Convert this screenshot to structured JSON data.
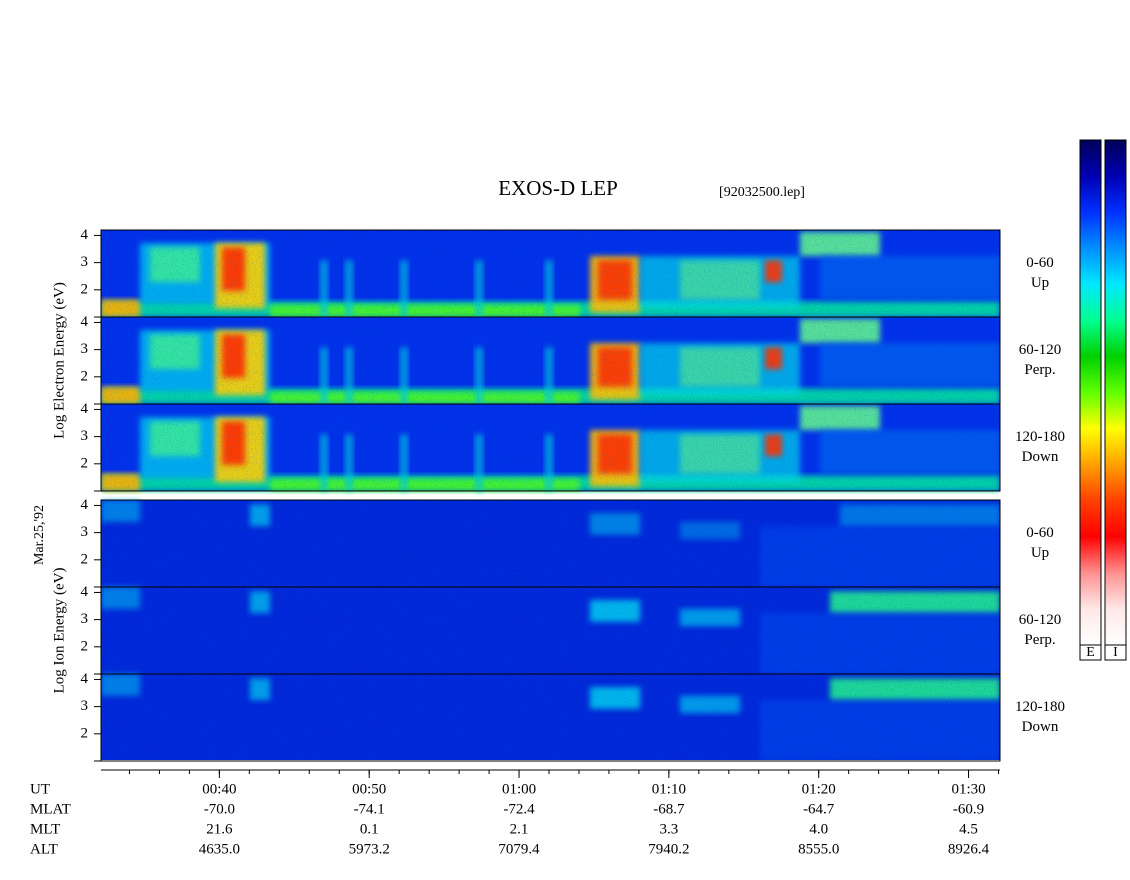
{
  "chart_data": {
    "type": "spectrogram",
    "title": "EXOS-D LEP",
    "file_label": "[92032500.lep]",
    "date_label": "Mar.25,'92",
    "groups": [
      {
        "ylabel": "Log  Electron  Energy (eV)",
        "species": "electron",
        "panels": [
          {
            "angle": "0-60",
            "direction": "Up"
          },
          {
            "angle": "60-120",
            "direction": "Perp."
          },
          {
            "angle": "120-180",
            "direction": "Down"
          }
        ]
      },
      {
        "ylabel": "Log  Ion  Energy (eV)",
        "species": "ion",
        "panels": [
          {
            "angle": "0-60",
            "direction": "Up"
          },
          {
            "angle": "60-120",
            "direction": "Perp."
          },
          {
            "angle": "120-180",
            "direction": "Down"
          }
        ]
      }
    ],
    "ylim": [
      1,
      4.2
    ],
    "yticks": [
      2,
      3,
      4
    ],
    "xlim": [
      32.1,
      92.1
    ],
    "xticks": [
      {
        "value": 40,
        "label": "00:40"
      },
      {
        "value": 50,
        "label": "00:50"
      },
      {
        "value": 60,
        "label": "01:00"
      },
      {
        "value": 70,
        "label": "01:10"
      },
      {
        "value": 80,
        "label": "01:20"
      },
      {
        "value": 90,
        "label": "01:30"
      }
    ],
    "x_minor_step": 2,
    "x_row_label": "UT",
    "orbit_rows": [
      {
        "name": "MLAT",
        "values": [
          "-70.0",
          "-74.1",
          "-72.4",
          "-68.7",
          "-64.7",
          "-60.9"
        ]
      },
      {
        "name": "MLT",
        "values": [
          "21.6",
          "0.1",
          "2.1",
          "3.3",
          "4.0",
          "4.5"
        ]
      },
      {
        "name": "ALT",
        "values": [
          "4635.0",
          "5973.2",
          "7079.4",
          "7940.2",
          "8555.0",
          "8926.4"
        ]
      }
    ],
    "colorbars": [
      "E",
      "I"
    ],
    "colormap": [
      "#00005a",
      "#0000b4",
      "#0030ff",
      "#0090ff",
      "#00e8ff",
      "#00ff90",
      "#00d000",
      "#60ff00",
      "#ffff00",
      "#ffa000",
      "#ff4000",
      "#ff0000",
      "#ff9090",
      "#ffe8e8",
      "#ffffff"
    ]
  }
}
